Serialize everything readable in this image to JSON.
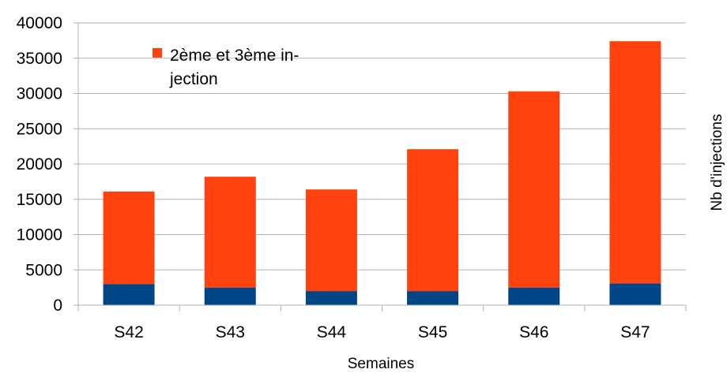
{
  "chart_data": {
    "type": "bar",
    "stacked": true,
    "title": "",
    "xlabel": "Semaines",
    "ylabel": "Nb d'injections",
    "categories": [
      "S42",
      "S43",
      "S44",
      "S45",
      "S46",
      "S47"
    ],
    "series": [
      {
        "color": "#004586",
        "values": [
          3000,
          2500,
          2000,
          2000,
          2500,
          3100
        ]
      },
      {
        "name": "2ème et 3ème injection",
        "color": "#ff420e",
        "values": [
          13100,
          15700,
          14400,
          20100,
          27800,
          34300
        ]
      }
    ],
    "ylim": [
      0,
      40000
    ],
    "yticks": [
      0,
      5000,
      10000,
      15000,
      20000,
      25000,
      30000,
      35000,
      40000
    ],
    "grid": true,
    "legend_position": "top-left"
  },
  "legend": {
    "line1": "2ème et 3ème in-",
    "line2": "jection"
  }
}
